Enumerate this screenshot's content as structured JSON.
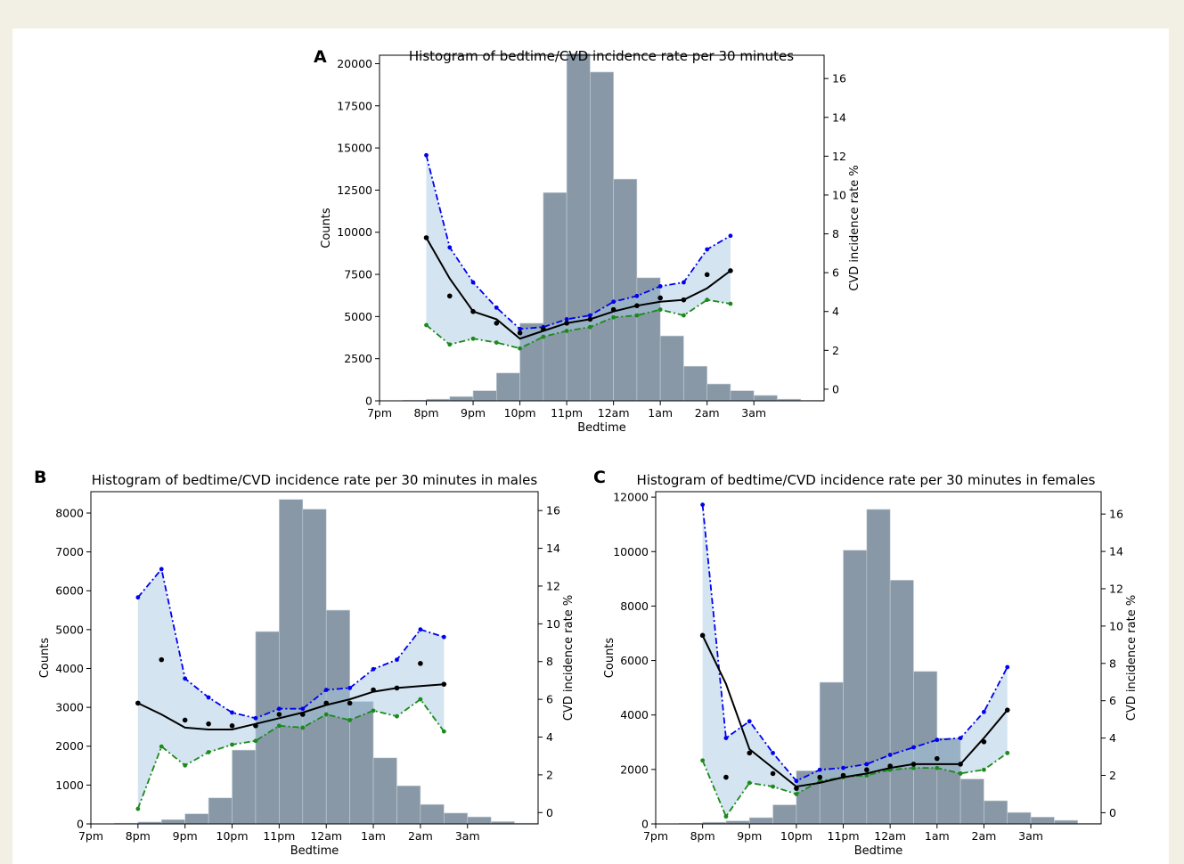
{
  "colors": {
    "hist": "#8898a6",
    "hist_edge": "#c8d0d8",
    "band": "#a9c9e2",
    "upper": "#0000ee",
    "lower": "#1a8a1a",
    "mean": "#000000",
    "axis": "#000000"
  },
  "chart_data": [
    {
      "panel_label": "A",
      "type": "bar",
      "title": "Histogram of bedtime/CVD incidence rate per 30 minutes",
      "xlabel": "Bedtime",
      "ylabel": "Counts",
      "y2label": "CVD incidence rate %",
      "xlim": [
        19,
        28.5
      ],
      "ylim": [
        0,
        20500
      ],
      "y2lim": [
        -0.6,
        17.2
      ],
      "x_ticks": [
        19,
        20,
        21,
        22,
        23,
        24,
        25,
        26,
        27
      ],
      "x_tick_labels": [
        "7pm",
        "8pm",
        "9pm",
        "10pm",
        "11pm",
        "12am",
        "1am",
        "2am",
        "3am"
      ],
      "y_ticks": [
        0,
        2500,
        5000,
        7500,
        10000,
        12500,
        15000,
        17500,
        20000
      ],
      "y2_ticks": [
        0,
        2,
        4,
        6,
        8,
        10,
        12,
        14,
        16
      ],
      "hist": {
        "bin_edges": [
          19,
          19.5,
          20,
          20.5,
          21,
          21.5,
          22,
          22.5,
          23,
          23.5,
          24,
          24.5,
          25,
          25.5,
          26,
          26.5,
          27,
          27.5,
          28,
          28.5
        ],
        "counts": [
          10,
          40,
          100,
          250,
          600,
          1650,
          4600,
          12350,
          20600,
          19500,
          13150,
          7300,
          3850,
          2050,
          1000,
          600,
          320,
          100,
          30
        ]
      },
      "rate_x": [
        20,
        20.5,
        21,
        21.5,
        22,
        22.5,
        23,
        23.5,
        24,
        24.5,
        25,
        25.5,
        26,
        26.5
      ],
      "series": [
        {
          "name": "upper",
          "values": [
            12.05,
            7.3,
            5.5,
            4.2,
            3.1,
            3.2,
            3.6,
            3.8,
            4.5,
            4.8,
            5.3,
            5.5,
            7.2,
            7.9
          ]
        },
        {
          "name": "lower",
          "values": [
            3.3,
            2.3,
            2.6,
            2.4,
            2.1,
            2.7,
            3.0,
            3.2,
            3.7,
            3.8,
            4.1,
            3.8,
            4.6,
            4.4
          ]
        },
        {
          "name": "mean",
          "values": [
            7.8,
            5.7,
            4.0,
            3.6,
            2.6,
            3.0,
            3.4,
            3.6,
            4.0,
            4.3,
            4.5,
            4.6,
            5.2,
            6.1
          ]
        },
        {
          "name": "points",
          "values": [
            7.8,
            4.8,
            4.0,
            3.4,
            2.9,
            3.1,
            3.4,
            3.6,
            4.1,
            4.3,
            4.7,
            4.6,
            5.9,
            6.1
          ]
        }
      ]
    },
    {
      "panel_label": "B",
      "type": "bar",
      "title": "Histogram of bedtime/CVD incidence rate per 30 minutes in males",
      "xlabel": "Bedtime",
      "ylabel": "Counts",
      "y2label": "CVD incidence rate %",
      "xlim": [
        19,
        28.5
      ],
      "ylim": [
        0,
        8550
      ],
      "y2lim": [
        -0.6,
        17.0
      ],
      "x_ticks": [
        19,
        20,
        21,
        22,
        23,
        24,
        25,
        26,
        27
      ],
      "x_tick_labels": [
        "7pm",
        "8pm",
        "9pm",
        "10pm",
        "11pm",
        "12am",
        "1am",
        "2am",
        "3am"
      ],
      "y_ticks": [
        0,
        1000,
        2000,
        3000,
        4000,
        5000,
        6000,
        7000,
        8000
      ],
      "y2_ticks": [
        0,
        2,
        4,
        6,
        8,
        10,
        12,
        14,
        16
      ],
      "hist": {
        "bin_edges": [
          19,
          19.5,
          20,
          20.5,
          21,
          21.5,
          22,
          22.5,
          23,
          23.5,
          24,
          24.5,
          25,
          25.5,
          26,
          26.5,
          27,
          27.5,
          28,
          28.5
        ],
        "counts": [
          5,
          20,
          50,
          110,
          260,
          670,
          1900,
          4950,
          8350,
          8100,
          5500,
          3150,
          1700,
          980,
          500,
          280,
          180,
          60,
          20
        ]
      },
      "rate_x": [
        20,
        20.5,
        21,
        21.5,
        22,
        22.5,
        23,
        23.5,
        24,
        24.5,
        25,
        25.5,
        26,
        26.5
      ],
      "series": [
        {
          "name": "upper",
          "values": [
            11.4,
            12.9,
            7.1,
            6.1,
            5.3,
            5.0,
            5.5,
            5.5,
            6.5,
            6.6,
            7.6,
            8.1,
            9.7,
            9.3
          ]
        },
        {
          "name": "lower",
          "values": [
            0.2,
            3.5,
            2.5,
            3.2,
            3.6,
            3.8,
            4.6,
            4.5,
            5.2,
            4.9,
            5.4,
            5.1,
            6.0,
            4.3
          ]
        },
        {
          "name": "mean",
          "values": [
            5.8,
            5.2,
            4.5,
            4.4,
            4.4,
            4.7,
            5.0,
            5.3,
            5.7,
            6.0,
            6.4,
            6.6,
            6.7,
            6.8
          ]
        },
        {
          "name": "points",
          "values": [
            5.8,
            8.1,
            4.9,
            4.7,
            4.6,
            4.6,
            5.2,
            5.2,
            5.8,
            5.8,
            6.5,
            6.6,
            7.9,
            6.8
          ]
        }
      ]
    },
    {
      "panel_label": "C",
      "type": "bar",
      "title": "Histogram of bedtime/CVD incidence rate per 30 minutes in females",
      "xlabel": "Bedtime",
      "ylabel": "Counts",
      "y2label": "CVD incidence rate %",
      "xlim": [
        19,
        28.5
      ],
      "ylim": [
        0,
        12200
      ],
      "y2lim": [
        -0.6,
        17.2
      ],
      "x_ticks": [
        19,
        20,
        21,
        22,
        23,
        24,
        25,
        26,
        27
      ],
      "x_tick_labels": [
        "7pm",
        "8pm",
        "9pm",
        "10pm",
        "11pm",
        "12am",
        "1am",
        "2am",
        "3am"
      ],
      "y_ticks": [
        0,
        2000,
        4000,
        6000,
        8000,
        10000,
        12000
      ],
      "y2_ticks": [
        0,
        2,
        4,
        6,
        8,
        10,
        12,
        14,
        16
      ],
      "hist": {
        "bin_edges": [
          19,
          19.5,
          20,
          20.5,
          21,
          21.5,
          22,
          22.5,
          23,
          23.5,
          24,
          24.5,
          25,
          25.5,
          26,
          26.5,
          27,
          27.5,
          28,
          28.5
        ],
        "counts": [
          5,
          20,
          60,
          110,
          230,
          700,
          1950,
          5200,
          10050,
          11550,
          8950,
          5600,
          3150,
          1650,
          850,
          420,
          250,
          130,
          20
        ]
      },
      "rate_x": [
        20,
        20.5,
        21,
        21.5,
        22,
        22.5,
        23,
        23.5,
        24,
        24.5,
        25,
        25.5,
        26,
        26.5
      ],
      "series": [
        {
          "name": "upper",
          "values": [
            16.5,
            4.0,
            4.9,
            3.2,
            1.7,
            2.3,
            2.4,
            2.6,
            3.1,
            3.5,
            3.9,
            4.0,
            5.4,
            7.8
          ]
        },
        {
          "name": "lower",
          "values": [
            2.8,
            -0.2,
            1.6,
            1.4,
            1.0,
            1.7,
            1.9,
            2.0,
            2.3,
            2.4,
            2.4,
            2.1,
            2.3,
            3.2
          ]
        },
        {
          "name": "mean",
          "values": [
            9.5,
            6.9,
            3.4,
            2.4,
            1.4,
            1.6,
            1.9,
            2.1,
            2.4,
            2.6,
            2.6,
            2.6,
            4.0,
            5.5
          ]
        },
        {
          "name": "points",
          "values": [
            9.5,
            1.9,
            3.2,
            2.1,
            1.3,
            1.9,
            2.0,
            2.3,
            2.5,
            2.6,
            2.9,
            2.6,
            3.8,
            5.5
          ]
        }
      ]
    }
  ]
}
